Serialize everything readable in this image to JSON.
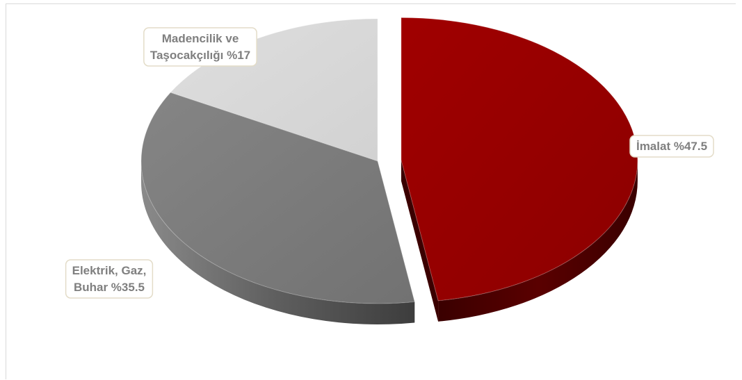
{
  "chart_data": {
    "type": "pie",
    "title": "",
    "slices": [
      {
        "label": "İmalat",
        "value": 47.5,
        "label_text": "İmalat  %47.5",
        "color": "#990000",
        "exploded": true
      },
      {
        "label": "Elektrik, Gaz, Buhar",
        "value": 35.5,
        "label_lines": [
          "Elektrik, Gaz,",
          "Buhar %35.5"
        ],
        "color": "#7f7f7f"
      },
      {
        "label": "Madencilik ve Taşocakçılığı",
        "value": 17,
        "label_lines": [
          "Madencilik ve",
          "Taşocakçılığı %17"
        ],
        "color": "#d9d9d9"
      }
    ],
    "style": "3d-exploded",
    "legend": "none"
  }
}
